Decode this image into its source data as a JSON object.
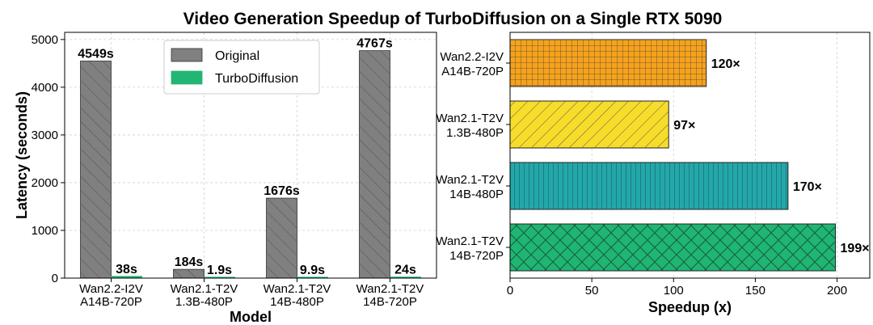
{
  "title": "Video Generation Speedup of TurboDiffusion on a Single RTX 5090",
  "chart_data": [
    {
      "type": "bar",
      "xlabel": "Model",
      "ylabel": "Latency (seconds)",
      "ylim": [
        0,
        5000
      ],
      "yticks": [
        0,
        1000,
        2000,
        3000,
        4000,
        5000
      ],
      "grid": true,
      "legend_position": "top-center",
      "categories": [
        [
          "Wan2.2-I2V",
          "A14B-720P"
        ],
        [
          "Wan2.1-T2V",
          "1.3B-480P"
        ],
        [
          "Wan2.1-T2V",
          "14B-480P"
        ],
        [
          "Wan2.1-T2V",
          "14B-720P"
        ]
      ],
      "series": [
        {
          "name": "Original",
          "values": [
            4549,
            184,
            1676,
            4767
          ],
          "labels": [
            "4549s",
            "184s",
            "1676s",
            "4767s"
          ],
          "color": "#808080",
          "hatch": "diagonal"
        },
        {
          "name": "TurboDiffusion",
          "values": [
            38,
            1.9,
            9.9,
            24
          ],
          "labels": [
            "38s",
            "1.9s",
            "9.9s",
            "24s"
          ],
          "color": "#22b573",
          "hatch": "none"
        }
      ]
    },
    {
      "type": "bar",
      "orientation": "horizontal",
      "xlabel": "Speedup (x)",
      "xlim": [
        0,
        220
      ],
      "xticks": [
        0,
        50,
        100,
        150,
        200
      ],
      "grid": true,
      "categories": [
        [
          "Wan2.2-I2V",
          "A14B-720P"
        ],
        [
          "Wan2.1-T2V",
          "1.3B-480P"
        ],
        [
          "Wan2.1-T2V",
          "14B-480P"
        ],
        [
          "Wan2.1-T2V",
          "14B-720P"
        ]
      ],
      "values": [
        120,
        97,
        170,
        199
      ],
      "labels": [
        "120×",
        "97×",
        "170×",
        "199×"
      ],
      "colors": [
        "#f7a21b",
        "#f7dd2a",
        "#22a8a8",
        "#1fb574"
      ],
      "hatches": [
        "grid",
        "backslash",
        "vertical",
        "cross"
      ]
    }
  ]
}
